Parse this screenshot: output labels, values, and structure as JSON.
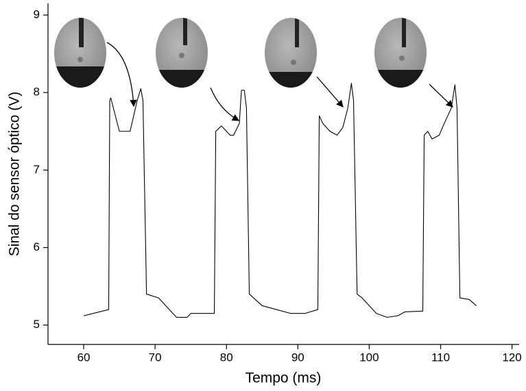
{
  "chart_data": {
    "type": "line",
    "x_label": "Tempo (ms)",
    "y_label": "Sinal do sensor óptico (V)",
    "xlim": [
      55,
      121
    ],
    "ylim": [
      4.75,
      9.15
    ],
    "xticks": [
      60,
      70,
      80,
      90,
      100,
      110,
      120
    ],
    "yticks": [
      5,
      6,
      7,
      8,
      9
    ],
    "grid": false,
    "series": [
      {
        "color": "#000000",
        "x": [
          60,
          63.5,
          63.65,
          63.8,
          64.3,
          65,
          66.5,
          67,
          67.5,
          68,
          68.3,
          68.8,
          70.5,
          71,
          72,
          73,
          74.5,
          75,
          78.3,
          78.5,
          79.3,
          80.5,
          81,
          81.8,
          82.1,
          82.5,
          82.8,
          83.2,
          85,
          87,
          89,
          91,
          92.8,
          93,
          93.5,
          94.5,
          95.5,
          96.3,
          97,
          97.5,
          97.8,
          98.3,
          99,
          100,
          101,
          102.5,
          104,
          105,
          107.5,
          107.7,
          108.2,
          108.8,
          109.8,
          110.5,
          111.5,
          112,
          112.3,
          112.7,
          114,
          115
        ],
        "values": [
          5.12,
          5.2,
          7.9,
          7.93,
          7.75,
          7.5,
          7.5,
          7.7,
          7.9,
          8.05,
          7.9,
          5.4,
          5.35,
          5.3,
          5.2,
          5.1,
          5.1,
          5.15,
          5.15,
          7.5,
          7.57,
          7.45,
          7.45,
          7.6,
          8.03,
          8.03,
          7.8,
          5.4,
          5.25,
          5.2,
          5.15,
          5.15,
          5.2,
          7.7,
          7.6,
          7.5,
          7.45,
          7.55,
          7.8,
          8.12,
          7.9,
          5.4,
          5.35,
          5.25,
          5.15,
          5.1,
          5.12,
          5.17,
          5.18,
          7.45,
          7.5,
          7.4,
          7.45,
          7.6,
          7.8,
          8.1,
          7.8,
          5.35,
          5.33,
          5.25
        ]
      }
    ]
  }
}
